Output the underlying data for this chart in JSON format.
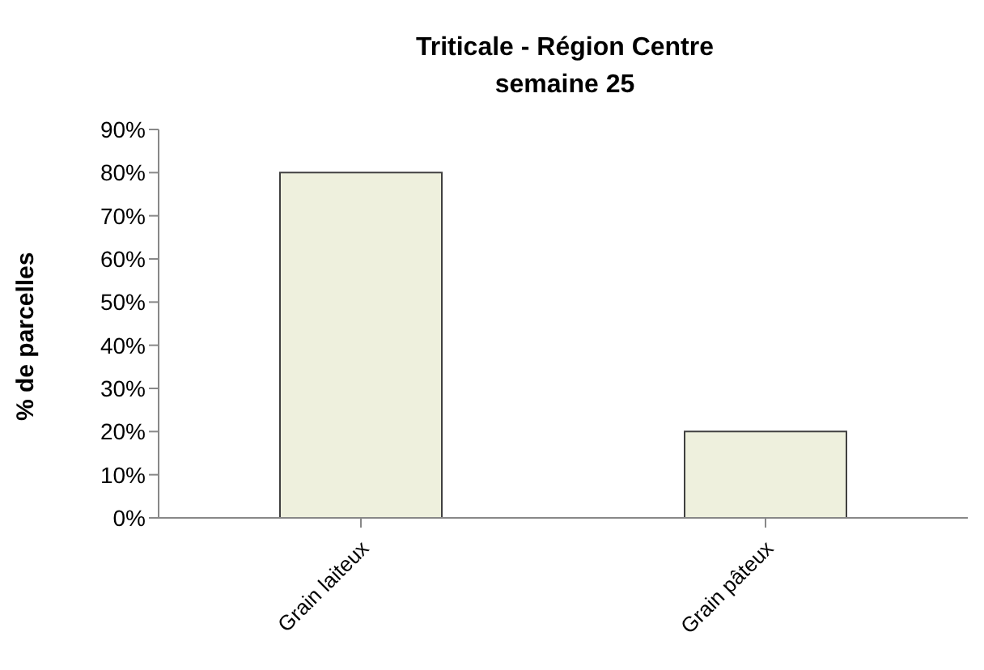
{
  "chart_data": {
    "type": "bar",
    "title": "Triticale - Région Centre",
    "subtitle": "semaine 25",
    "ylabel": "% de parcelles",
    "categories": [
      "Grain laiteux",
      "Grain pâteux"
    ],
    "values": [
      80,
      20
    ],
    "color": "#eef0dd",
    "ylim": [
      0,
      90
    ],
    "yticks": [
      {
        "value": 0,
        "label": "0%"
      },
      {
        "value": 10,
        "label": "10%"
      },
      {
        "value": 20,
        "label": "20%"
      },
      {
        "value": 30,
        "label": "30%"
      },
      {
        "value": 40,
        "label": "40%"
      },
      {
        "value": 50,
        "label": "50%"
      },
      {
        "value": 60,
        "label": "60%"
      },
      {
        "value": 70,
        "label": "70%"
      },
      {
        "value": 80,
        "label": "80%"
      },
      {
        "value": 90,
        "label": "90%"
      }
    ],
    "grid": false,
    "legend": false
  }
}
